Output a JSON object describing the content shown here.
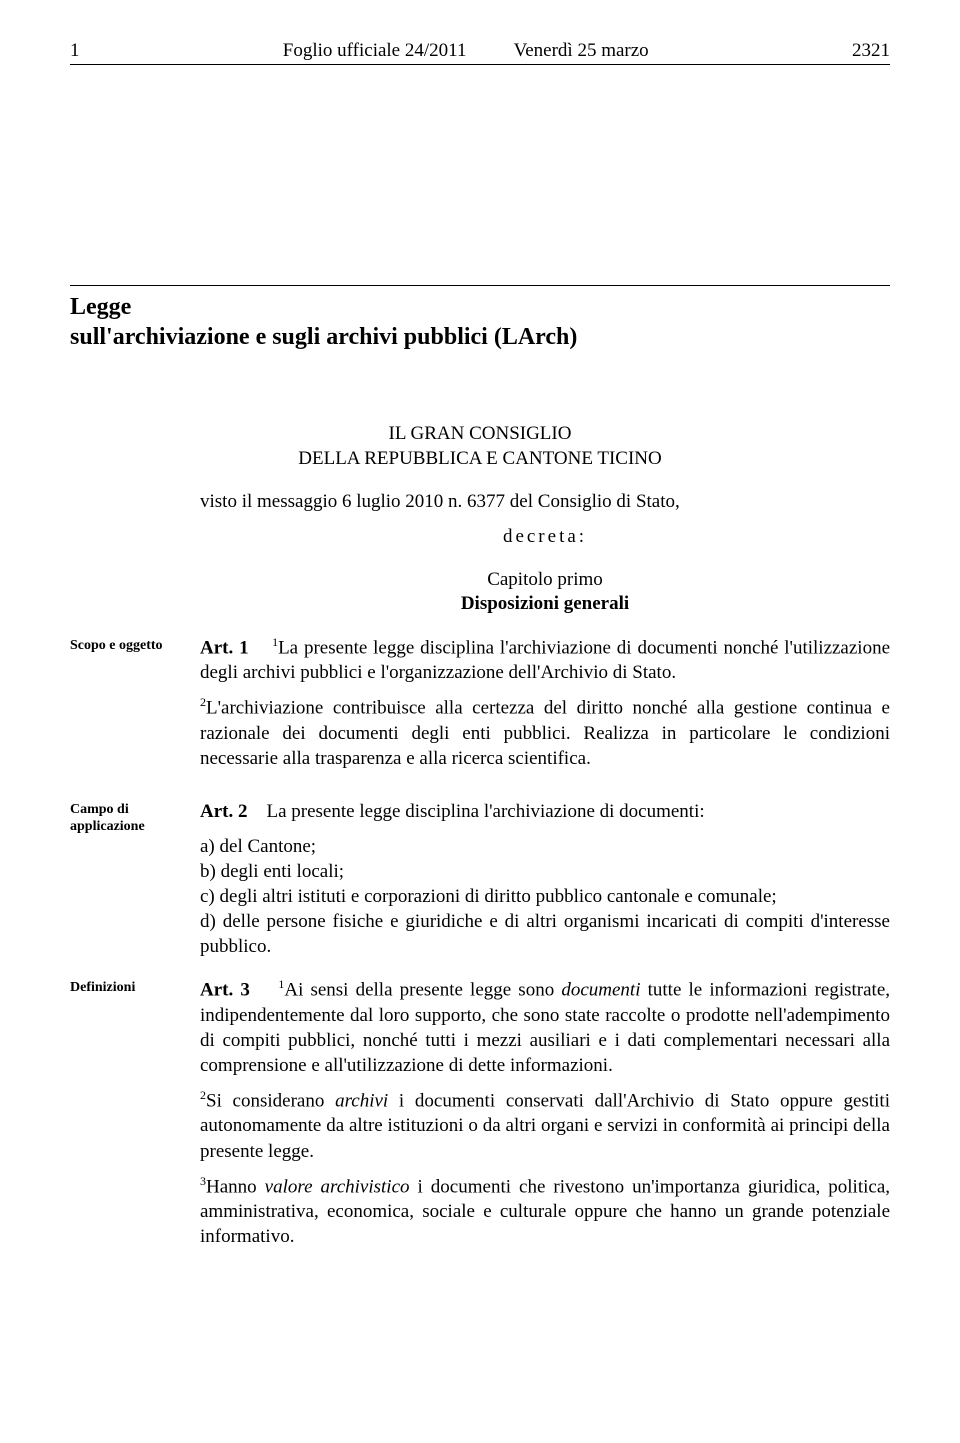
{
  "header": {
    "page_left": "1",
    "journal": "Foglio ufficiale  24/2011",
    "date": "Venerdì 25 marzo",
    "page_right": "2321"
  },
  "title": {
    "line1": "Legge",
    "line2": "sull'archiviazione e sugli archivi pubblici (LArch)"
  },
  "authority": {
    "line1": "IL GRAN CONSIGLIO",
    "line2": "DELLA REPUBBLICA E CANTONE TICINO"
  },
  "visto": "visto il messaggio 6 luglio 2010 n. 6377 del Consiglio di Stato,",
  "decreta": "decreta:",
  "chapter": {
    "line1": "Capitolo primo",
    "line2": "Disposizioni generali"
  },
  "articles": {
    "art1": {
      "margin": "Scopo e oggetto",
      "label": "Art. 1",
      "p1_sup": "1",
      "p1": "La presente legge disciplina l'archiviazione di documenti nonché l'utilizzazione degli archivi pubblici e l'organizzazione dell'Archivio di Stato.",
      "p2_sup": "2",
      "p2": "L'archiviazione contribuisce alla certezza del diritto nonché alla gestione continua e razionale dei documenti degli enti pubblici. Realizza in particolare le condizioni necessarie alla trasparenza e alla ricerca scientifica."
    },
    "art2": {
      "margin": "Campo di applicazione",
      "label": "Art. 2",
      "intro": "La presente legge disciplina l'archiviazione di documenti:",
      "a": "a) del Cantone;",
      "b": "b) degli enti locali;",
      "c": "c) degli altri istituti e corporazioni di diritto pubblico cantonale e comunale;",
      "d": "d) delle persone fisiche e giuridiche e di altri organismi incaricati di compiti d'interesse pubblico."
    },
    "art3": {
      "margin": "Definizioni",
      "label": "Art. 3",
      "p1_sup": "1",
      "p1a": "Ai sensi della presente legge sono ",
      "p1_em": "documenti",
      "p1b": " tutte le informazioni registrate, indipendentemente dal loro supporto, che sono state raccolte o prodotte nell'adempimento di compiti pubblici, nonché tutti i mezzi ausiliari e i dati complementari necessari alla comprensione e all'utilizzazione di dette informazioni.",
      "p2_sup": "2",
      "p2a": "Si considerano ",
      "p2_em": "archivi",
      "p2b": " i documenti conservati dall'Archivio di Stato oppure gestiti autonomamente da altre istituzioni o da altri organi e servizi in conformità ai principi della presente legge.",
      "p3_sup": "3",
      "p3a": "Hanno ",
      "p3_em": "valore archivistico",
      "p3b": " i documenti che rivestono un'importanza giuridica, politica, amministrativa, economica, sociale e culturale oppure che hanno un grande potenziale informativo."
    }
  }
}
